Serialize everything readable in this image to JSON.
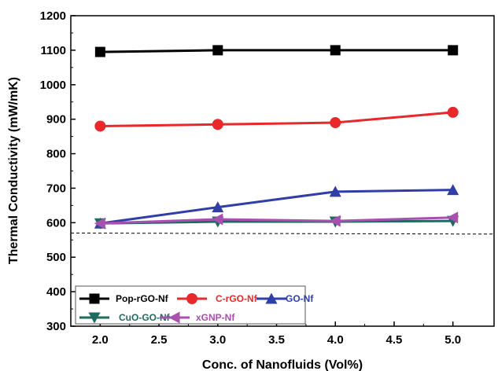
{
  "chart_data": {
    "type": "line",
    "title": "",
    "xlabel": "Conc. of Nanofluids (Vol%)",
    "ylabel": "Thermal Conductivity (mW/mK)",
    "xlim": [
      1.75,
      5.35
    ],
    "ylim": [
      300,
      1200
    ],
    "x_ticks": [
      "2.0",
      "2.5",
      "3.0",
      "3.5",
      "4.0",
      "4.5",
      "5.0"
    ],
    "y_ticks": [
      "300",
      "400",
      "500",
      "600",
      "700",
      "800",
      "900",
      "1000",
      "1100",
      "1200"
    ],
    "x": [
      2.0,
      3.0,
      4.0,
      5.0
    ],
    "series": [
      {
        "name": "Pop-rGO-Nf",
        "values": [
          1095,
          1100,
          1100,
          1100
        ],
        "color": "#000000",
        "marker": "square"
      },
      {
        "name": "C-rGO-Nf",
        "values": [
          880,
          885,
          890,
          920
        ],
        "color": "#e8282b",
        "marker": "circle"
      },
      {
        "name": "GO-Nf",
        "values": [
          598,
          645,
          690,
          695
        ],
        "color": "#2f3ea8",
        "marker": "triangle-up"
      },
      {
        "name": "CuO-GO-Nf",
        "values": [
          598,
          603,
          603,
          605
        ],
        "color": "#1f6b60",
        "marker": "triangle-down"
      },
      {
        "name": "xGNP-Nf",
        "values": [
          598,
          610,
          605,
          615
        ],
        "color": "#a84fb0",
        "marker": "triangle-left"
      }
    ],
    "baseline": {
      "style": "dashed",
      "x": [
        1.75,
        5.35
      ],
      "y": [
        570,
        567
      ]
    },
    "legend": {
      "placement": "bottom-left"
    },
    "grid": false
  }
}
